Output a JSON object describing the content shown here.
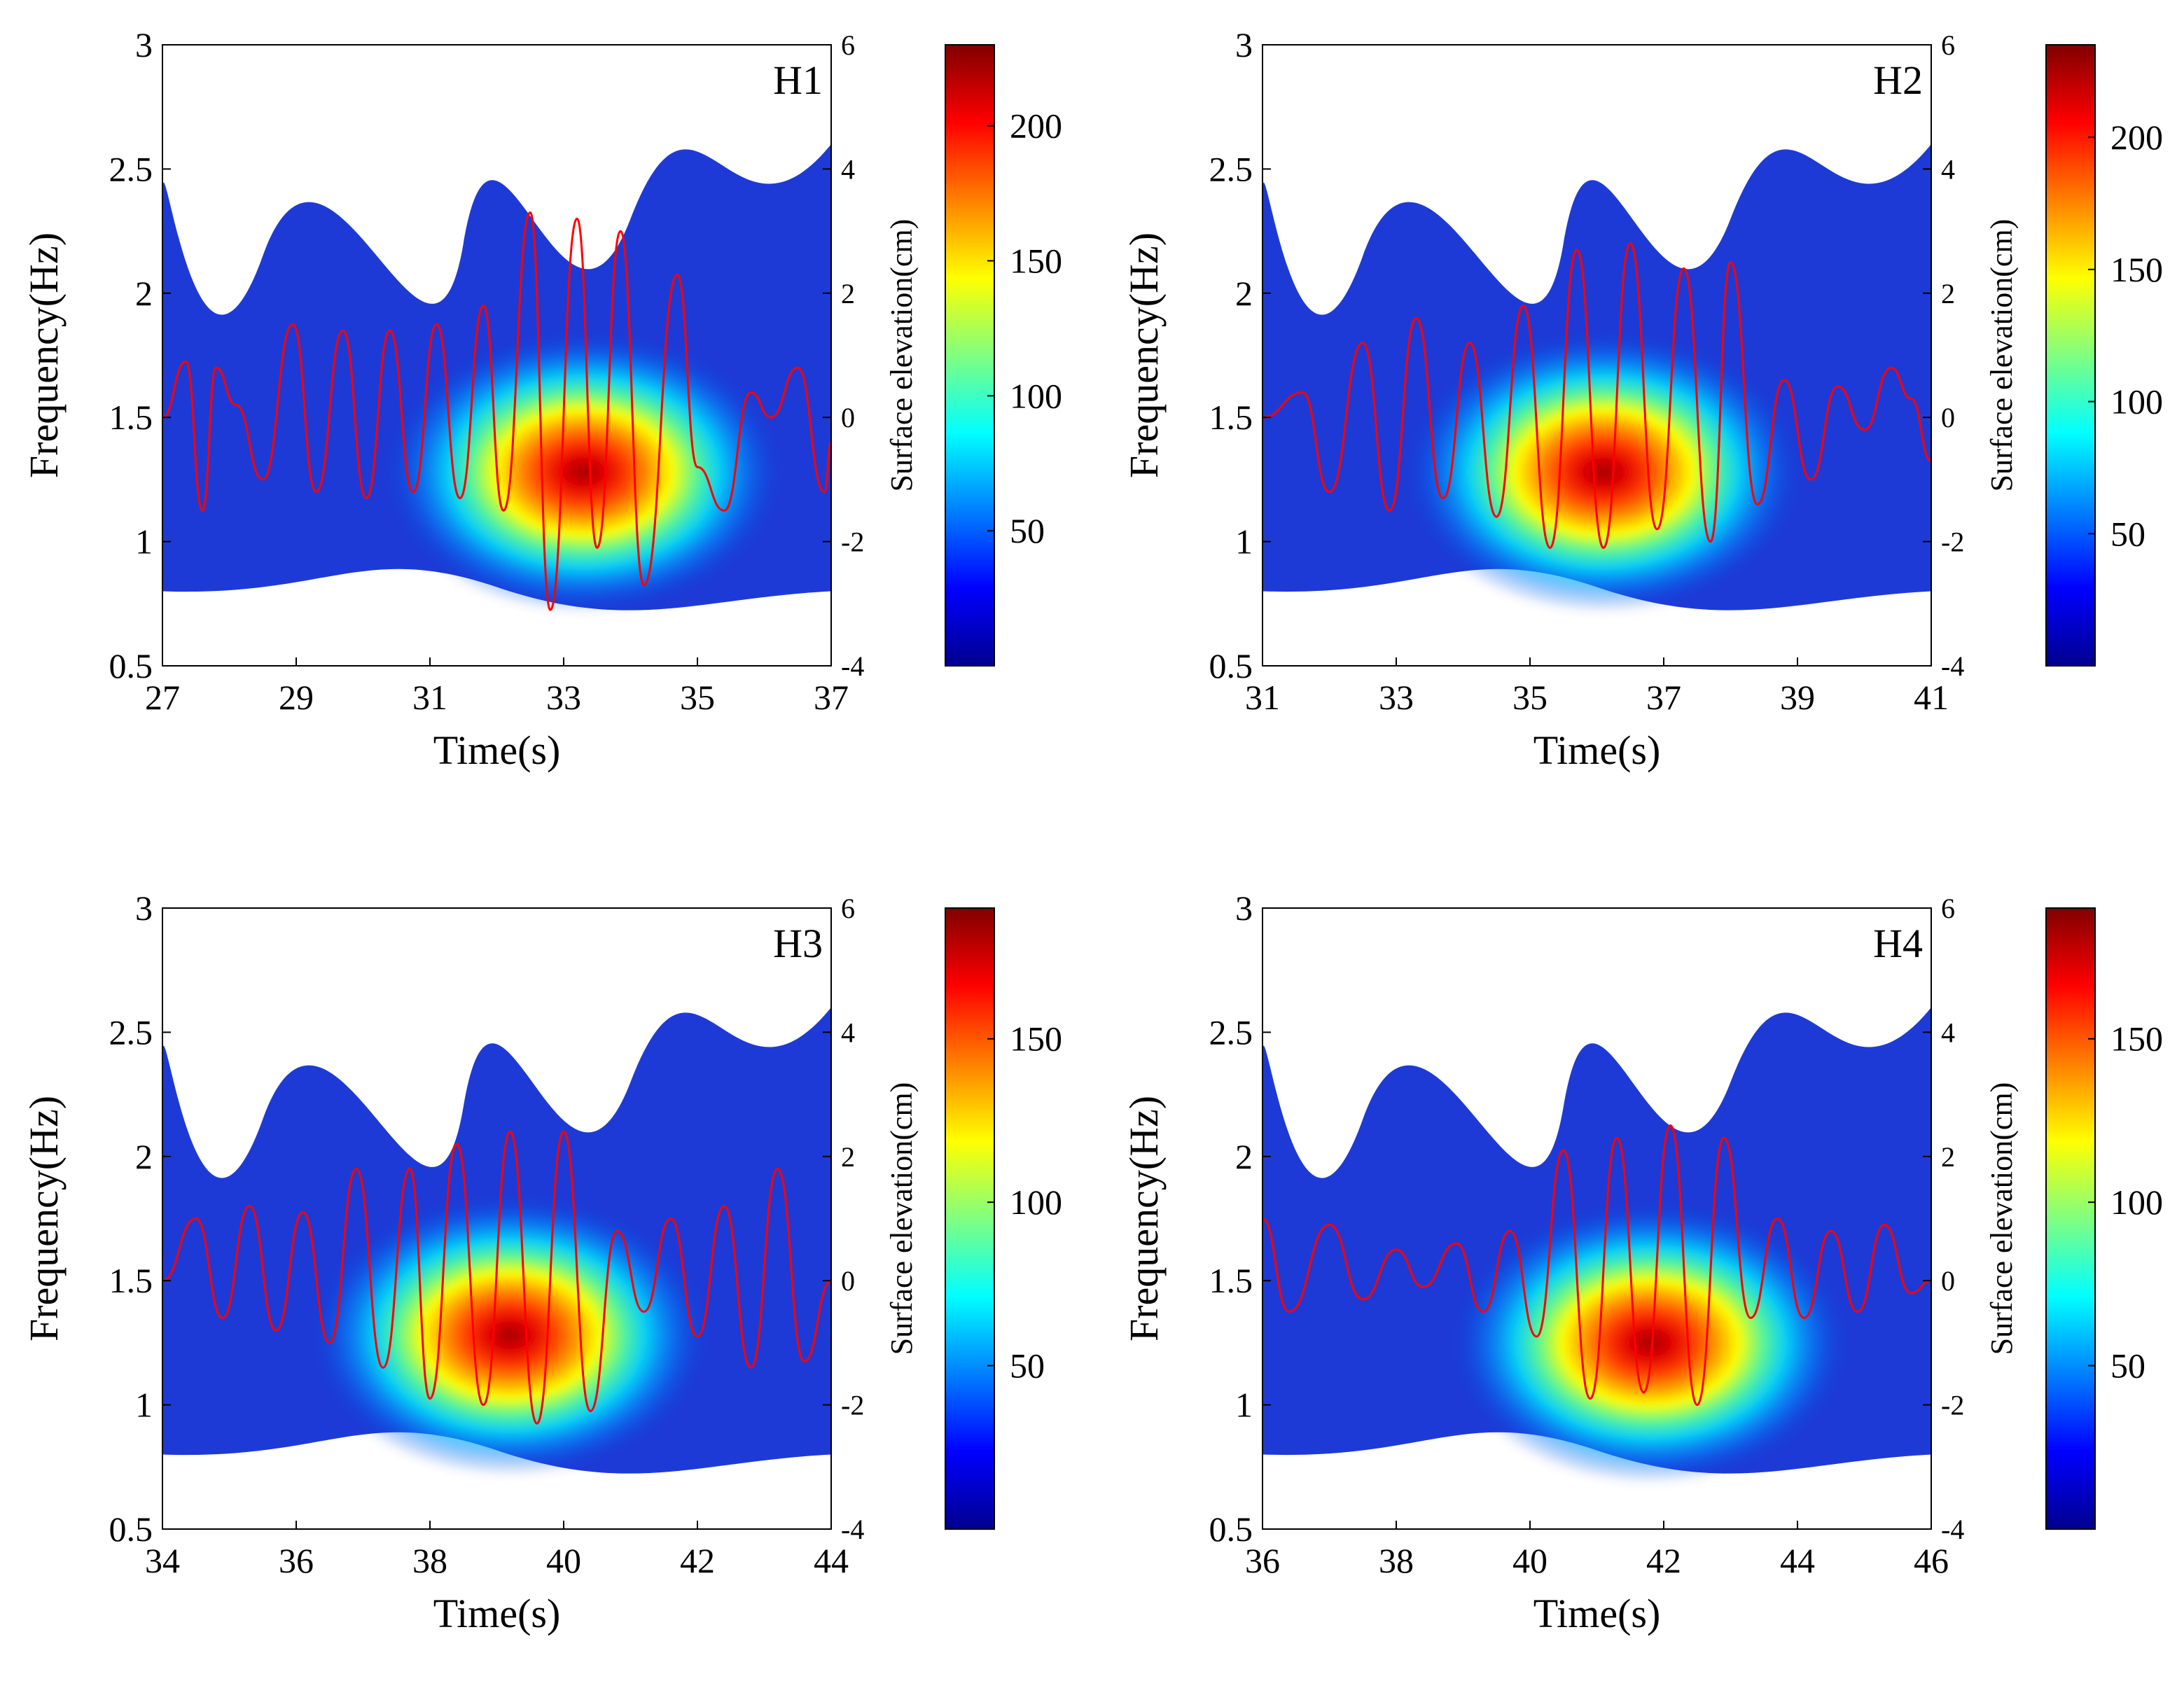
{
  "colors": {
    "signal_line": "#ff0000",
    "blob_outer": "#1e3ad6",
    "background": "#ffffff",
    "axis": "#000000",
    "colormap": [
      "#00008f",
      "#0000ff",
      "#0080ff",
      "#00ffff",
      "#80ff80",
      "#ffff00",
      "#ff8000",
      "#ff0000",
      "#800000"
    ]
  },
  "chart_data": [
    {
      "id": "H1",
      "type": "heatmap",
      "title": "H1",
      "xlabel": "Time(s)",
      "ylabel": "Frequency(Hz)",
      "y2label": "Surface elevation(cm)",
      "xlim": [
        27,
        37
      ],
      "ylim": [
        0.5,
        3
      ],
      "y2lim": [
        -4,
        6
      ],
      "xticks": [
        "27",
        "29",
        "31",
        "33",
        "35",
        "37"
      ],
      "yticks": [
        "0.5",
        "1",
        "1.5",
        "2",
        "2.5",
        "3"
      ],
      "y2ticks": [
        "-4",
        "-2",
        "0",
        "2",
        "4",
        "6"
      ],
      "colorbar": {
        "min": 0,
        "max": 230,
        "ticks": [
          "50",
          "100",
          "150",
          "200"
        ]
      },
      "peak": {
        "t": 33.3,
        "f": 1.28,
        "value": 230
      },
      "elevation": {
        "t": [
          27.0,
          27.35,
          27.6,
          27.8,
          28.1,
          28.5,
          28.95,
          29.3,
          29.7,
          30.05,
          30.4,
          30.75,
          31.1,
          31.45,
          31.8,
          32.1,
          32.5,
          32.8,
          33.2,
          33.5,
          33.85,
          34.2,
          34.7,
          35.0,
          35.4,
          35.8,
          36.1,
          36.5,
          36.9,
          37.0
        ],
        "eta": [
          0.0,
          0.9,
          -1.5,
          0.8,
          0.2,
          -1.0,
          1.5,
          -1.2,
          1.4,
          -1.3,
          1.4,
          -1.2,
          1.5,
          -1.3,
          1.8,
          -1.5,
          3.3,
          -3.1,
          3.2,
          -2.1,
          3.0,
          -2.7,
          2.3,
          -0.8,
          -1.5,
          0.4,
          0.0,
          0.8,
          -1.2,
          -0.4
        ]
      }
    },
    {
      "id": "H2",
      "type": "heatmap",
      "title": "H2",
      "xlabel": "Time(s)",
      "ylabel": "Frequency(Hz)",
      "y2label": "Surface elevation(cm)",
      "xlim": [
        31,
        41
      ],
      "ylim": [
        0.5,
        3
      ],
      "y2lim": [
        -4,
        6
      ],
      "xticks": [
        "31",
        "33",
        "35",
        "37",
        "39",
        "41"
      ],
      "yticks": [
        "0.5",
        "1",
        "1.5",
        "2",
        "2.5",
        "3"
      ],
      "y2ticks": [
        "-4",
        "-2",
        "0",
        "2",
        "4",
        "6"
      ],
      "colorbar": {
        "min": 0,
        "max": 235,
        "ticks": [
          "50",
          "100",
          "150",
          "200"
        ]
      },
      "peak": {
        "t": 36.1,
        "f": 1.28,
        "value": 235
      },
      "elevation": {
        "t": [
          31.0,
          31.6,
          32.0,
          32.5,
          32.9,
          33.3,
          33.7,
          34.1,
          34.5,
          34.9,
          35.3,
          35.7,
          36.1,
          36.5,
          36.9,
          37.3,
          37.7,
          38.0,
          38.4,
          38.8,
          39.2,
          39.6,
          40.0,
          40.4,
          40.7,
          41.0
        ],
        "eta": [
          0.0,
          0.4,
          -1.2,
          1.2,
          -1.5,
          1.6,
          -1.3,
          1.2,
          -1.6,
          1.8,
          -2.1,
          2.7,
          -2.1,
          2.8,
          -1.8,
          2.4,
          -2.0,
          2.5,
          -1.4,
          0.6,
          -1.0,
          0.5,
          -0.2,
          0.8,
          0.3,
          -0.7
        ]
      }
    },
    {
      "id": "H3",
      "type": "heatmap",
      "title": "H3",
      "xlabel": "Time(s)",
      "ylabel": "Frequency(Hz)",
      "y2label": "Surface elevation(cm)",
      "xlim": [
        34,
        44
      ],
      "ylim": [
        0.5,
        3
      ],
      "y2lim": [
        -4,
        6
      ],
      "xticks": [
        "34",
        "36",
        "38",
        "40",
        "42",
        "44"
      ],
      "yticks": [
        "0.5",
        "1",
        "1.5",
        "2",
        "2.5",
        "3"
      ],
      "y2ticks": [
        "-4",
        "-2",
        "0",
        "2",
        "4",
        "6"
      ],
      "colorbar": {
        "min": 0,
        "max": 190,
        "ticks": [
          "50",
          "100",
          "150"
        ]
      },
      "peak": {
        "t": 39.2,
        "f": 1.28,
        "value": 190
      },
      "elevation": {
        "t": [
          34.0,
          34.5,
          34.9,
          35.3,
          35.7,
          36.1,
          36.5,
          36.9,
          37.3,
          37.7,
          38.0,
          38.4,
          38.8,
          39.2,
          39.6,
          40.0,
          40.4,
          40.8,
          41.2,
          41.6,
          42.0,
          42.4,
          42.8,
          43.2,
          43.6,
          44.0
        ],
        "eta": [
          0.0,
          1.0,
          -0.6,
          1.2,
          -0.8,
          1.1,
          -1.0,
          1.8,
          -1.4,
          1.8,
          -1.9,
          2.2,
          -2.0,
          2.4,
          -2.3,
          2.4,
          -2.1,
          0.8,
          -0.5,
          1.0,
          -0.9,
          1.2,
          -1.4,
          1.8,
          -1.3,
          0.0
        ]
      }
    },
    {
      "id": "H4",
      "type": "heatmap",
      "title": "H4",
      "xlabel": "Time(s)",
      "ylabel": "Frequency(Hz)",
      "y2label": "Surface elevation(cm)",
      "xlim": [
        36,
        46
      ],
      "ylim": [
        0.5,
        3
      ],
      "y2lim": [
        -4,
        6
      ],
      "xticks": [
        "36",
        "38",
        "40",
        "42",
        "44",
        "46"
      ],
      "yticks": [
        "0.5",
        "1",
        "1.5",
        "2",
        "2.5",
        "3"
      ],
      "y2ticks": [
        "-4",
        "-2",
        "0",
        "2",
        "4",
        "6"
      ],
      "colorbar": {
        "min": 0,
        "max": 190,
        "ticks": [
          "50",
          "100",
          "150"
        ]
      },
      "peak": {
        "t": 41.8,
        "f": 1.25,
        "value": 190
      },
      "elevation": {
        "t": [
          36.0,
          36.4,
          37.0,
          37.5,
          38.0,
          38.4,
          38.9,
          39.3,
          39.7,
          40.1,
          40.5,
          40.9,
          41.3,
          41.7,
          42.1,
          42.5,
          42.9,
          43.3,
          43.7,
          44.1,
          44.5,
          44.9,
          45.3,
          45.7,
          46.0
        ],
        "eta": [
          1.0,
          -0.5,
          0.9,
          -0.3,
          0.5,
          -0.1,
          0.6,
          -0.5,
          0.8,
          -0.9,
          2.1,
          -1.9,
          2.3,
          -1.8,
          2.5,
          -2.0,
          2.3,
          -0.6,
          1.0,
          -0.6,
          0.8,
          -0.5,
          0.9,
          -0.2,
          0.0
        ]
      }
    }
  ]
}
